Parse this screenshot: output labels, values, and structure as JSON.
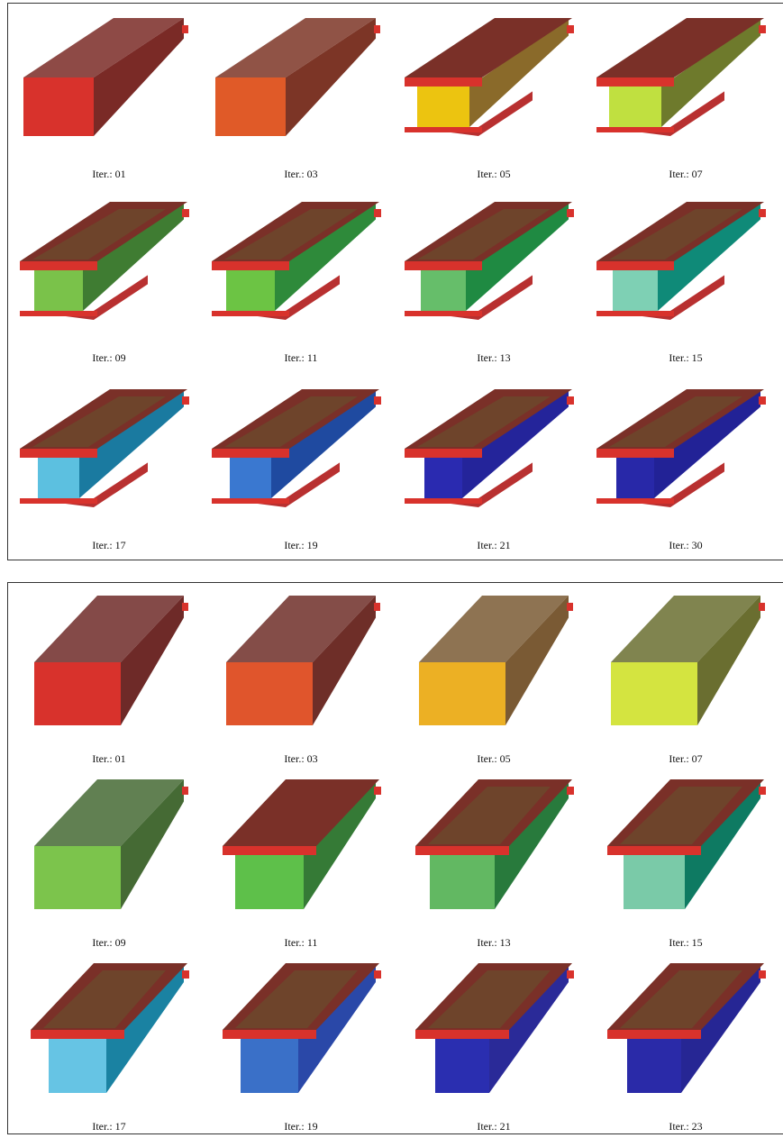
{
  "figure_top": {
    "frames": [
      {
        "label": "Iter.: 01",
        "end_color": "#d8322c",
        "side_color": "#7a2a26",
        "profile": "box",
        "stage": 0
      },
      {
        "label": "Iter.: 03",
        "end_color": "#e05a28",
        "side_color": "#7c3526",
        "profile": "box",
        "stage": 0
      },
      {
        "label": "Iter.: 05",
        "end_color": "#ecc410",
        "side_color": "#8a6a2a",
        "profile": "ibeam",
        "stage": 1
      },
      {
        "label": "Iter.: 07",
        "end_color": "#c0e040",
        "side_color": "#6e7a2c",
        "profile": "ibeam",
        "stage": 1
      },
      {
        "label": "Iter.: 09",
        "end_color": "#7ac24a",
        "side_color": "#3f7c32",
        "profile": "ibeam",
        "stage": 2
      },
      {
        "label": "Iter.: 11",
        "end_color": "#6cc444",
        "side_color": "#2e8a3a",
        "profile": "ibeam",
        "stage": 2
      },
      {
        "label": "Iter.: 13",
        "end_color": "#66be6a",
        "side_color": "#1f8a42",
        "profile": "ibeam",
        "stage": 3
      },
      {
        "label": "Iter.: 15",
        "end_color": "#7ed0b4",
        "side_color": "#0f8a78",
        "profile": "ibeam",
        "stage": 3
      },
      {
        "label": "Iter.: 17",
        "end_color": "#5cc0e0",
        "side_color": "#1a7aa0",
        "profile": "ibeam",
        "stage": 4
      },
      {
        "label": "Iter.: 19",
        "end_color": "#3a78d0",
        "side_color": "#1f4aa0",
        "profile": "ibeam",
        "stage": 4
      },
      {
        "label": "Iter.: 21",
        "end_color": "#2a2ab0",
        "side_color": "#24249a",
        "profile": "ibeam",
        "stage": 5
      },
      {
        "label": "Iter.: 30",
        "end_color": "#2828a8",
        "side_color": "#222296",
        "profile": "ibeam",
        "stage": 5
      }
    ]
  },
  "figure_bottom": {
    "frames": [
      {
        "label": "Iter.: 01",
        "end_color": "#d8322c",
        "side_color": "#6e2a28",
        "profile": "box",
        "stage": 0
      },
      {
        "label": "Iter.: 03",
        "end_color": "#e0552c",
        "side_color": "#6e2e28",
        "profile": "box",
        "stage": 0
      },
      {
        "label": "Iter.: 05",
        "end_color": "#ecb024",
        "side_color": "#7a5a34",
        "profile": "box",
        "stage": 0
      },
      {
        "label": "Iter.: 07",
        "end_color": "#d4e440",
        "side_color": "#6a6e30",
        "profile": "box",
        "stage": 0
      },
      {
        "label": "Iter.: 09",
        "end_color": "#7cc44c",
        "side_color": "#456a34",
        "profile": "box",
        "stage": 0
      },
      {
        "label": "Iter.: 11",
        "end_color": "#5ec04a",
        "side_color": "#357a36",
        "profile": "tee",
        "stage": 1
      },
      {
        "label": "Iter.: 13",
        "end_color": "#62b862",
        "side_color": "#287a3c",
        "profile": "tee",
        "stage": 2
      },
      {
        "label": "Iter.: 15",
        "end_color": "#7acaa8",
        "side_color": "#0e7a62",
        "profile": "tee",
        "stage": 3
      },
      {
        "label": "Iter.: 17",
        "end_color": "#66c4e4",
        "side_color": "#1a82a2",
        "profile": "tee",
        "stage": 4
      },
      {
        "label": "Iter.: 19",
        "end_color": "#3a70c8",
        "side_color": "#2a48a8",
        "profile": "tee",
        "stage": 4
      },
      {
        "label": "Iter.: 21",
        "end_color": "#2a2eb0",
        "side_color": "#2a2a98",
        "profile": "tee",
        "stage": 5
      },
      {
        "label": "Iter.: 23",
        "end_color": "#2a2aa8",
        "side_color": "#262694",
        "profile": "tee",
        "stage": 5
      }
    ]
  }
}
